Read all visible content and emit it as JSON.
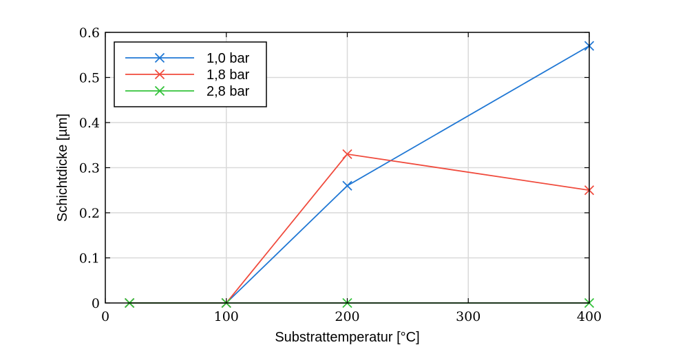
{
  "chart_data": {
    "type": "line",
    "xlabel": "Substrattemperatur [°C]",
    "ylabel": "Schichtdicke [µm]",
    "xlim": [
      0,
      400
    ],
    "ylim": [
      0,
      0.6
    ],
    "xticks": [
      0,
      100,
      200,
      300,
      400
    ],
    "xtick_labels": [
      "0",
      "100",
      "200",
      "300",
      "400"
    ],
    "yticks": [
      0,
      0.1,
      0.2,
      0.3,
      0.4,
      0.5,
      0.6
    ],
    "ytick_labels": [
      "0",
      "0.1",
      "0.2",
      "0.3",
      "0.4",
      "0.5",
      "0.6"
    ],
    "grid": true,
    "legend_position": "top-left",
    "marker": "x",
    "series": [
      {
        "name": "1,0 bar",
        "color": "#1f77d4",
        "x": [
          20,
          100,
          200,
          400
        ],
        "y": [
          0,
          0,
          0.26,
          0.57
        ]
      },
      {
        "name": "1,8 bar",
        "color": "#f04a3c",
        "x": [
          20,
          100,
          200,
          400
        ],
        "y": [
          0,
          0,
          0.33,
          0.25
        ]
      },
      {
        "name": "2,8 bar",
        "color": "#33c23a",
        "x": [
          20,
          100,
          200,
          400
        ],
        "y": [
          0,
          0,
          0,
          0
        ]
      }
    ]
  }
}
